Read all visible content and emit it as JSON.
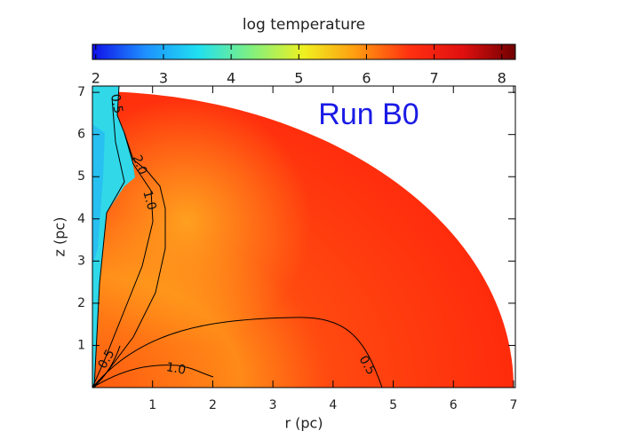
{
  "chart_data": {
    "type": "heatmap",
    "title": "Run B0",
    "title_color": "#1a1ae6",
    "xlabel": "r (pc)",
    "ylabel": "z (pc)",
    "xlim": [
      0,
      7.03
    ],
    "ylim": [
      0,
      7.15
    ],
    "xticks": [
      1,
      2,
      3,
      4,
      5,
      6,
      7
    ],
    "yticks": [
      1,
      2,
      3,
      4,
      5,
      6,
      7
    ],
    "colorbar": {
      "label": "log temperature",
      "clim": [
        1.95,
        8.2
      ],
      "ticks": [
        2,
        3,
        4,
        5,
        6,
        7,
        8
      ],
      "colormap": [
        "#1010e8",
        "#1e90ff",
        "#20e0f0",
        "#80f080",
        "#f0f020",
        "#ff9a10",
        "#ff3010",
        "#e01010",
        "#700000"
      ]
    },
    "contour_labels": [
      "0.5",
      "2.0",
      "1.0",
      "0.5",
      "1.0",
      "0.5"
    ]
  }
}
